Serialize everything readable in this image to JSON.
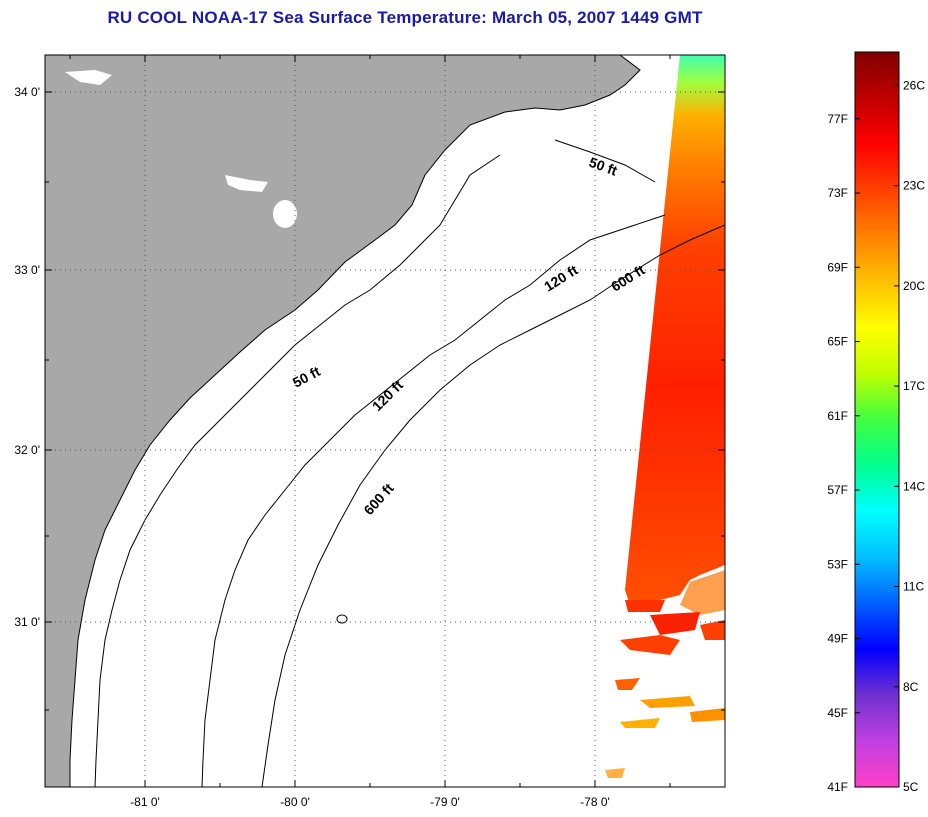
{
  "title": "RU COOL  NOAA-17  Sea Surface Temperature:  March 05, 2007 1449 GMT",
  "map": {
    "lat_labels": [
      "34 0'",
      "33 0'",
      "32 0'",
      "31 0'"
    ],
    "lon_labels": [
      "-81 0'",
      "-80 0'",
      "-79 0'",
      "-78 0'"
    ],
    "contours": [
      "50 ft",
      "50 ft",
      "120 ft",
      "120 ft",
      "600 ft",
      "600 ft"
    ],
    "colors": {
      "land": "#a8a8a8",
      "ocean": "#ffffff",
      "coast": "#000000"
    }
  },
  "colorbar": {
    "fahrenheit_labels": [
      "77F",
      "73F",
      "69F",
      "65F",
      "61F",
      "57F",
      "53F",
      "49F",
      "45F",
      "41F"
    ],
    "celsius_labels": [
      "26C",
      "23C",
      "20C",
      "17C",
      "14C",
      "11C",
      "8C",
      "5C"
    ],
    "range_c": [
      5,
      27
    ],
    "stops": [
      "#ff40c8",
      "#c040e0",
      "#7030d0",
      "#0000ff",
      "#0060ff",
      "#00c0ff",
      "#00ffff",
      "#00ff90",
      "#40ff40",
      "#c0ff00",
      "#ffff00",
      "#ffc000",
      "#ff8000",
      "#ff4000",
      "#ff0000",
      "#c00000",
      "#800000"
    ]
  }
}
